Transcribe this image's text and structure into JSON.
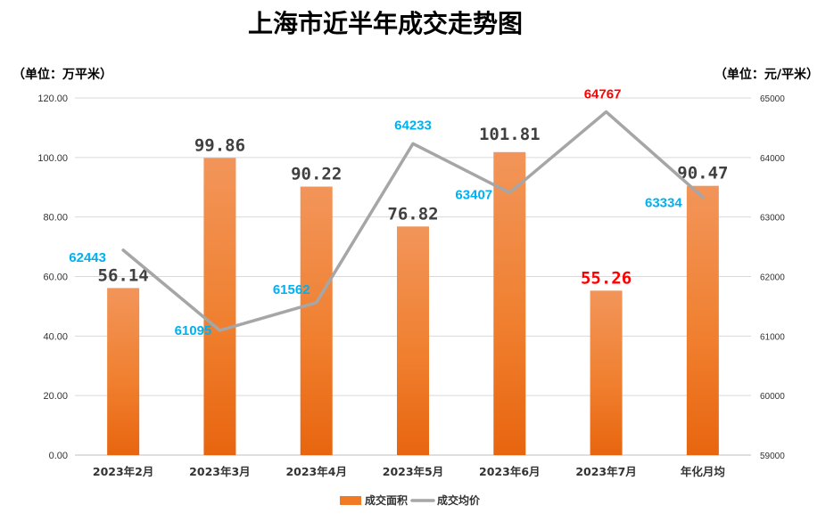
{
  "chart_data": {
    "type": "bar",
    "title": "上海市近半年成交走势图",
    "left_axis_unit": "（单位：万平米）",
    "right_axis_unit": "（单位：元/平米）",
    "categories": [
      "2023年2月",
      "2023年3月",
      "2023年4月",
      "2023年5月",
      "2023年6月",
      "2023年7月",
      "年化月均"
    ],
    "ylim": [
      0,
      120
    ],
    "y_ticks": [
      "0.00",
      "20.00",
      "40.00",
      "60.00",
      "80.00",
      "100.00",
      "120.00"
    ],
    "y2lim": [
      59000,
      65000
    ],
    "y2_ticks": [
      "59000",
      "60000",
      "61000",
      "62000",
      "63000",
      "64000",
      "65000"
    ],
    "grid": true,
    "legend_position": "bottom",
    "series": [
      {
        "name": "成交面积",
        "type": "bar",
        "axis": "left",
        "values": [
          56.14,
          99.86,
          90.22,
          76.82,
          101.81,
          55.26,
          90.47
        ],
        "labels": [
          "56.14",
          "99.86",
          "90.22",
          "76.82",
          "101.81",
          "55.26",
          "90.47"
        ],
        "color": "#F07A26",
        "label_color": "#404040",
        "highlight_color": "#FF0000",
        "highlight_index": 5
      },
      {
        "name": "成交均价",
        "type": "line",
        "axis": "right",
        "values": [
          62443,
          61095,
          61562,
          64233,
          63407,
          64767,
          63334
        ],
        "labels": [
          "62443",
          "61095",
          "61562",
          "64233",
          "63407",
          "64767",
          "63334"
        ],
        "color": "#A6A6A6",
        "label_color": "#00B0F0",
        "highlight_color": "#FF0000",
        "highlight_index": 5
      }
    ]
  }
}
